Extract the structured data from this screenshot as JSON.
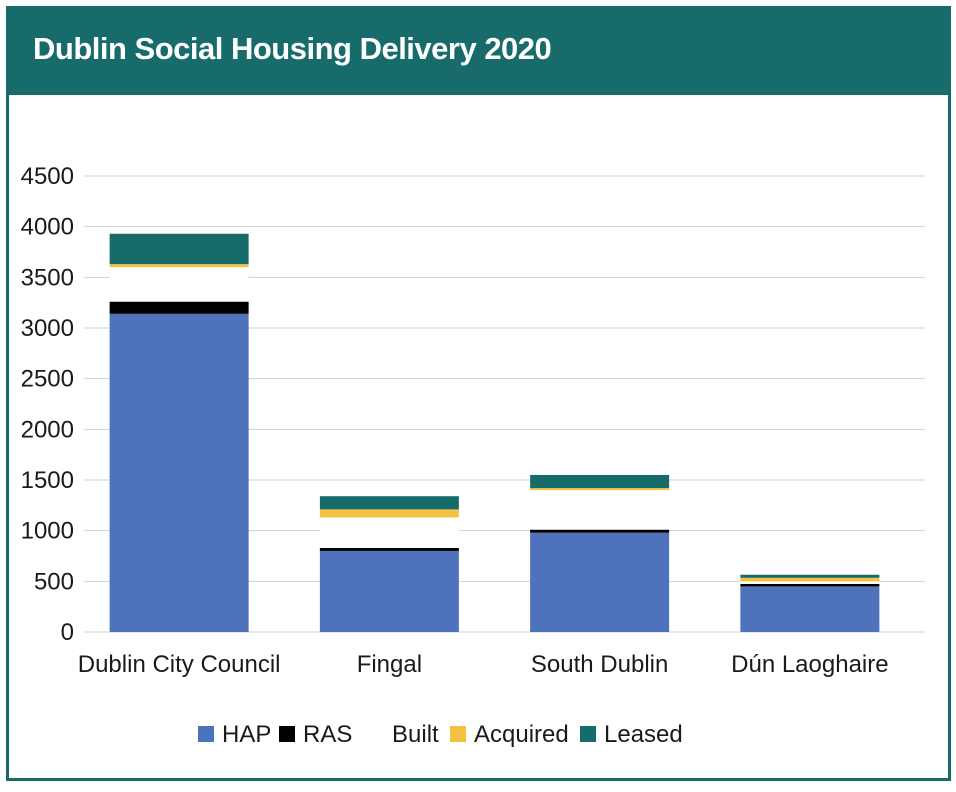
{
  "title": "Dublin Social Housing Delivery 2020",
  "chart_data": {
    "type": "bar",
    "stacked": true,
    "categories": [
      "Dublin City Council",
      "Fingal",
      "South Dublin",
      "Dún Laoghaire"
    ],
    "series": [
      {
        "name": "HAP",
        "color": "#4f72bd",
        "values": [
          3140,
          800,
          980,
          450
        ]
      },
      {
        "name": "RAS",
        "color": "#000000",
        "values": [
          120,
          30,
          30,
          25
        ]
      },
      {
        "name": "Built",
        "color": "#ffffff",
        "values": [
          340,
          300,
          390,
          25
        ]
      },
      {
        "name": "Acquired",
        "color": "#f4c242",
        "values": [
          30,
          80,
          20,
          35
        ]
      },
      {
        "name": "Leased",
        "color": "#176b6a",
        "values": [
          300,
          130,
          130,
          30
        ]
      }
    ],
    "ylim": [
      0,
      4500
    ],
    "yticks": [
      0,
      500,
      1000,
      1500,
      2000,
      2500,
      3000,
      3500,
      4000,
      4500
    ],
    "grid": true,
    "legend": "bottom"
  }
}
